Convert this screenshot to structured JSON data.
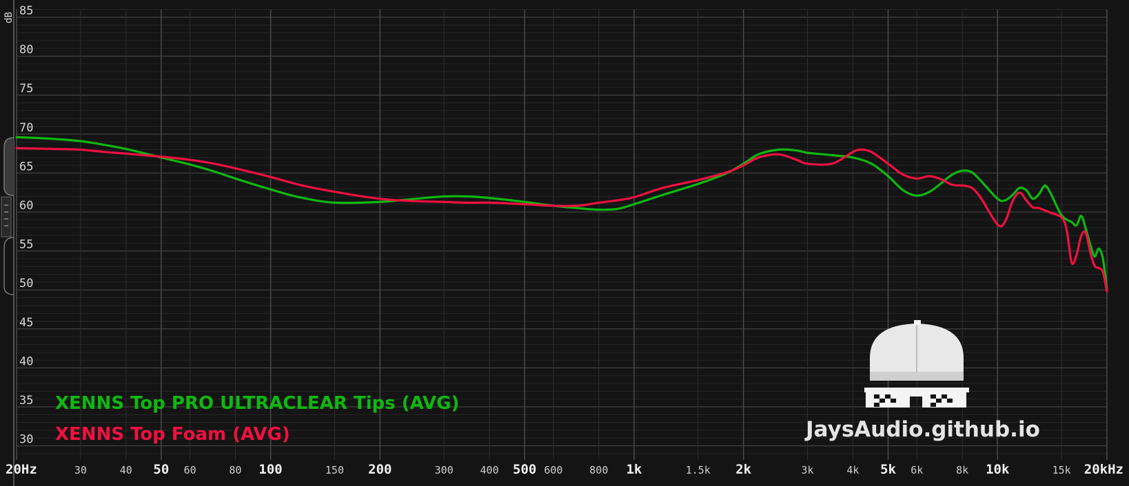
{
  "chart_data": {
    "type": "line",
    "ylabel": "dB",
    "ylim": [
      28,
      86
    ],
    "xlim": [
      20,
      20000
    ],
    "x_scale": "log",
    "grid": true,
    "legend_position": "bottom-left",
    "y_ticks": [
      {
        "value": 85,
        "label": "85"
      },
      {
        "value": 80,
        "label": "80"
      },
      {
        "value": 75,
        "label": "75"
      },
      {
        "value": 70,
        "label": "70"
      },
      {
        "value": 65,
        "label": "65"
      },
      {
        "value": 60,
        "label": "60"
      },
      {
        "value": 55,
        "label": "55"
      },
      {
        "value": 50,
        "label": "50"
      },
      {
        "value": 45,
        "label": "45"
      },
      {
        "value": 40,
        "label": "40"
      },
      {
        "value": 35,
        "label": "35"
      },
      {
        "value": 30,
        "label": "30"
      }
    ],
    "x_ticks": [
      {
        "value": 20,
        "label": "20Hz",
        "major": true
      },
      {
        "value": 30,
        "label": "30",
        "major": false
      },
      {
        "value": 40,
        "label": "40",
        "major": false
      },
      {
        "value": 50,
        "label": "50",
        "major": true
      },
      {
        "value": 60,
        "label": "60",
        "major": false
      },
      {
        "value": 80,
        "label": "80",
        "major": false
      },
      {
        "value": 100,
        "label": "100",
        "major": true
      },
      {
        "value": 150,
        "label": "150",
        "major": false
      },
      {
        "value": 200,
        "label": "200",
        "major": true
      },
      {
        "value": 300,
        "label": "300",
        "major": false
      },
      {
        "value": 400,
        "label": "400",
        "major": false
      },
      {
        "value": 500,
        "label": "500",
        "major": true
      },
      {
        "value": 600,
        "label": "600",
        "major": false
      },
      {
        "value": 800,
        "label": "800",
        "major": false
      },
      {
        "value": 1000,
        "label": "1k",
        "major": true
      },
      {
        "value": 1500,
        "label": "1.5k",
        "major": false
      },
      {
        "value": 2000,
        "label": "2k",
        "major": true
      },
      {
        "value": 3000,
        "label": "3k",
        "major": false
      },
      {
        "value": 4000,
        "label": "4k",
        "major": false
      },
      {
        "value": 5000,
        "label": "5k",
        "major": true
      },
      {
        "value": 6000,
        "label": "6k",
        "major": false
      },
      {
        "value": 8000,
        "label": "8k",
        "major": false
      },
      {
        "value": 10000,
        "label": "10k",
        "major": true
      },
      {
        "value": 15000,
        "label": "15k",
        "major": false
      },
      {
        "value": 20000,
        "label": "20kHz",
        "major": true
      }
    ],
    "series": [
      {
        "name": "XENNS Top PRO ULTRACLEAR Tips (AVG)",
        "color": "#0fb80f",
        "points": [
          [
            20,
            69.6
          ],
          [
            25,
            69.4
          ],
          [
            30,
            69.1
          ],
          [
            35,
            68.6
          ],
          [
            40,
            68.1
          ],
          [
            50,
            67.0
          ],
          [
            60,
            66.1
          ],
          [
            70,
            65.2
          ],
          [
            80,
            64.3
          ],
          [
            100,
            62.9
          ],
          [
            120,
            61.9
          ],
          [
            150,
            61.2
          ],
          [
            200,
            61.3
          ],
          [
            250,
            61.7
          ],
          [
            300,
            62.0
          ],
          [
            350,
            62.0
          ],
          [
            400,
            61.8
          ],
          [
            500,
            61.3
          ],
          [
            600,
            60.8
          ],
          [
            700,
            60.5
          ],
          [
            800,
            60.3
          ],
          [
            900,
            60.4
          ],
          [
            1000,
            61.0
          ],
          [
            1200,
            62.2
          ],
          [
            1500,
            63.6
          ],
          [
            1800,
            65.0
          ],
          [
            2000,
            66.2
          ],
          [
            2200,
            67.4
          ],
          [
            2500,
            68.0
          ],
          [
            2800,
            67.9
          ],
          [
            3000,
            67.6
          ],
          [
            3500,
            67.3
          ],
          [
            4000,
            67.0
          ],
          [
            4500,
            66.2
          ],
          [
            5000,
            64.6
          ],
          [
            5500,
            62.8
          ],
          [
            6000,
            62.1
          ],
          [
            6500,
            62.6
          ],
          [
            7000,
            63.7
          ],
          [
            7500,
            64.8
          ],
          [
            8000,
            65.3
          ],
          [
            8500,
            65.1
          ],
          [
            9000,
            64.0
          ],
          [
            10000,
            61.7
          ],
          [
            10500,
            61.5
          ],
          [
            11000,
            62.2
          ],
          [
            11500,
            63.1
          ],
          [
            12000,
            62.8
          ],
          [
            12500,
            61.7
          ],
          [
            13000,
            62.3
          ],
          [
            13500,
            63.4
          ],
          [
            14000,
            62.4
          ],
          [
            15000,
            59.6
          ],
          [
            16000,
            58.7
          ],
          [
            16500,
            58.3
          ],
          [
            17000,
            59.5
          ],
          [
            17500,
            57.8
          ],
          [
            18000,
            55.8
          ],
          [
            18500,
            54.3
          ],
          [
            19000,
            55.3
          ],
          [
            19500,
            54.0
          ],
          [
            20000,
            50.0
          ]
        ]
      },
      {
        "name": "XENNS Top Foam (AVG)",
        "color": "#f01040",
        "points": [
          [
            20,
            68.2
          ],
          [
            25,
            68.1
          ],
          [
            30,
            68.0
          ],
          [
            35,
            67.7
          ],
          [
            40,
            67.5
          ],
          [
            50,
            67.1
          ],
          [
            60,
            66.7
          ],
          [
            70,
            66.2
          ],
          [
            80,
            65.6
          ],
          [
            100,
            64.5
          ],
          [
            120,
            63.5
          ],
          [
            150,
            62.6
          ],
          [
            200,
            61.7
          ],
          [
            250,
            61.4
          ],
          [
            300,
            61.3
          ],
          [
            350,
            61.2
          ],
          [
            400,
            61.2
          ],
          [
            500,
            61.0
          ],
          [
            600,
            60.8
          ],
          [
            700,
            60.8
          ],
          [
            800,
            61.2
          ],
          [
            900,
            61.5
          ],
          [
            1000,
            61.9
          ],
          [
            1200,
            63.1
          ],
          [
            1500,
            64.1
          ],
          [
            1800,
            65.1
          ],
          [
            2000,
            66.0
          ],
          [
            2200,
            67.0
          ],
          [
            2500,
            67.4
          ],
          [
            2800,
            66.7
          ],
          [
            3000,
            66.2
          ],
          [
            3500,
            66.2
          ],
          [
            4000,
            67.7
          ],
          [
            4200,
            68.0
          ],
          [
            4500,
            67.7
          ],
          [
            5000,
            66.2
          ],
          [
            5500,
            64.8
          ],
          [
            6000,
            64.3
          ],
          [
            6500,
            64.6
          ],
          [
            7000,
            64.2
          ],
          [
            7500,
            63.5
          ],
          [
            8000,
            63.4
          ],
          [
            8500,
            63.1
          ],
          [
            9000,
            61.8
          ],
          [
            10000,
            58.4
          ],
          [
            10500,
            58.8
          ],
          [
            11000,
            61.4
          ],
          [
            11500,
            62.5
          ],
          [
            12000,
            61.5
          ],
          [
            12500,
            60.6
          ],
          [
            13000,
            60.5
          ],
          [
            14000,
            59.9
          ],
          [
            15000,
            59.3
          ],
          [
            15500,
            57.7
          ],
          [
            16000,
            53.5
          ],
          [
            16500,
            54.5
          ],
          [
            17000,
            57.0
          ],
          [
            17500,
            57.3
          ],
          [
            18000,
            54.8
          ],
          [
            18500,
            53.1
          ],
          [
            19000,
            52.8
          ],
          [
            19500,
            52.3
          ],
          [
            20000,
            49.8
          ]
        ]
      }
    ]
  },
  "watermark": {
    "brand": "JaysAudio.github.io",
    "logo_icon": "cap-with-pixel-sunglasses-icon"
  },
  "colors": {
    "background": "#141414",
    "grid_major": "#3a3a3a",
    "grid_minor": "#262626"
  }
}
